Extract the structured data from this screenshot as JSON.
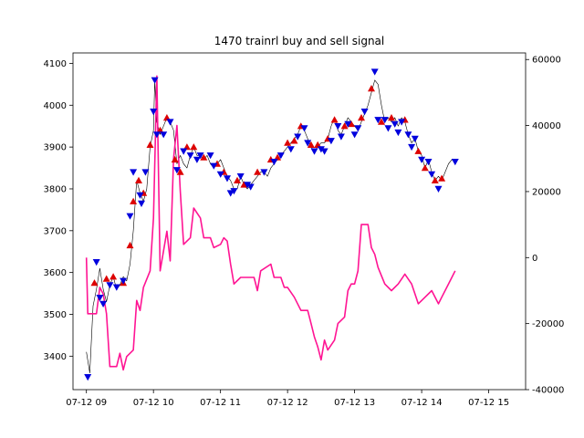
{
  "chart_data": {
    "type": "line",
    "title": "1470 trainrl buy and sell signal",
    "xlabel": "",
    "ylabel": "",
    "x_range": [
      8.8,
      15.55
    ],
    "x_ticks": [
      {
        "value": 9,
        "label": "07-12 09"
      },
      {
        "value": 10,
        "label": "07-12 10"
      },
      {
        "value": 11,
        "label": "07-12 11"
      },
      {
        "value": 12,
        "label": "07-12 12"
      },
      {
        "value": 13,
        "label": "07-12 13"
      },
      {
        "value": 14,
        "label": "07-12 14"
      },
      {
        "value": 15,
        "label": "07-12 15"
      }
    ],
    "left_axis": {
      "ylim": [
        3320,
        4125
      ],
      "ticks": [
        3400,
        3500,
        3600,
        3700,
        3800,
        3900,
        4000,
        4100
      ]
    },
    "right_axis": {
      "ylim": [
        -40000,
        62000
      ],
      "ticks": [
        -40000,
        -20000,
        0,
        20000,
        40000,
        60000
      ]
    },
    "series": [
      {
        "axis": "left",
        "color": "#000000",
        "values": [
          [
            9.0,
            3410
          ],
          [
            9.05,
            3360
          ],
          [
            9.1,
            3520
          ],
          [
            9.15,
            3560
          ],
          [
            9.2,
            3610
          ],
          [
            9.25,
            3560
          ],
          [
            9.3,
            3530
          ],
          [
            9.35,
            3570
          ],
          [
            9.4,
            3590
          ],
          [
            9.45,
            3560
          ],
          [
            9.5,
            3570
          ],
          [
            9.55,
            3590
          ],
          [
            9.6,
            3580
          ],
          [
            9.65,
            3620
          ],
          [
            9.7,
            3700
          ],
          [
            9.75,
            3820
          ],
          [
            9.8,
            3790
          ],
          [
            9.85,
            3770
          ],
          [
            9.9,
            3800
          ],
          [
            9.95,
            3900
          ],
          [
            10.0,
            3940
          ],
          [
            10.02,
            4060
          ],
          [
            10.05,
            3960
          ],
          [
            10.1,
            3930
          ],
          [
            10.15,
            3950
          ],
          [
            10.2,
            3970
          ],
          [
            10.25,
            3960
          ],
          [
            10.3,
            3940
          ],
          [
            10.35,
            3860
          ],
          [
            10.4,
            3880
          ],
          [
            10.45,
            3860
          ],
          [
            10.5,
            3850
          ],
          [
            10.55,
            3880
          ],
          [
            10.6,
            3900
          ],
          [
            10.65,
            3880
          ],
          [
            10.7,
            3880
          ],
          [
            10.75,
            3870
          ],
          [
            10.8,
            3880
          ],
          [
            10.85,
            3860
          ],
          [
            10.9,
            3850
          ],
          [
            10.95,
            3860
          ],
          [
            11.0,
            3870
          ],
          [
            11.05,
            3850
          ],
          [
            11.1,
            3830
          ],
          [
            11.15,
            3820
          ],
          [
            11.2,
            3800
          ],
          [
            11.25,
            3800
          ],
          [
            11.3,
            3830
          ],
          [
            11.35,
            3810
          ],
          [
            11.4,
            3800
          ],
          [
            11.45,
            3810
          ],
          [
            11.5,
            3820
          ],
          [
            11.55,
            3830
          ],
          [
            11.6,
            3840
          ],
          [
            11.65,
            3840
          ],
          [
            11.7,
            3830
          ],
          [
            11.75,
            3850
          ],
          [
            11.8,
            3860
          ],
          [
            11.85,
            3870
          ],
          [
            11.9,
            3880
          ],
          [
            11.95,
            3890
          ],
          [
            12.0,
            3900
          ],
          [
            12.05,
            3910
          ],
          [
            12.1,
            3920
          ],
          [
            12.15,
            3930
          ],
          [
            12.2,
            3950
          ],
          [
            12.25,
            3940
          ],
          [
            12.3,
            3920
          ],
          [
            12.35,
            3900
          ],
          [
            12.4,
            3890
          ],
          [
            12.45,
            3900
          ],
          [
            12.5,
            3910
          ],
          [
            12.55,
            3910
          ],
          [
            12.6,
            3920
          ],
          [
            12.65,
            3950
          ],
          [
            12.7,
            3970
          ],
          [
            12.75,
            3940
          ],
          [
            12.8,
            3930
          ],
          [
            12.85,
            3950
          ],
          [
            12.9,
            3970
          ],
          [
            12.95,
            3960
          ],
          [
            13.0,
            3950
          ],
          [
            13.05,
            3940
          ],
          [
            13.1,
            3960
          ],
          [
            13.15,
            3980
          ],
          [
            13.2,
            4000
          ],
          [
            13.25,
            4030
          ],
          [
            13.3,
            4060
          ],
          [
            13.35,
            4050
          ],
          [
            13.4,
            4000
          ],
          [
            13.45,
            3960
          ],
          [
            13.5,
            3970
          ],
          [
            13.55,
            3960
          ],
          [
            13.6,
            3970
          ],
          [
            13.65,
            3950
          ],
          [
            13.7,
            3970
          ],
          [
            13.75,
            3960
          ],
          [
            13.8,
            3930
          ],
          [
            13.85,
            3910
          ],
          [
            13.9,
            3920
          ],
          [
            13.95,
            3890
          ],
          [
            14.0,
            3880
          ],
          [
            14.05,
            3850
          ],
          [
            14.1,
            3870
          ],
          [
            14.15,
            3840
          ],
          [
            14.2,
            3820
          ],
          [
            14.25,
            3830
          ],
          [
            14.3,
            3820
          ],
          [
            14.35,
            3840
          ],
          [
            14.4,
            3860
          ],
          [
            14.45,
            3870
          ],
          [
            14.5,
            3865
          ]
        ]
      },
      {
        "axis": "right",
        "color": "#ff1493",
        "values": [
          [
            9.0,
            0
          ],
          [
            9.02,
            -17000
          ],
          [
            9.15,
            -17000
          ],
          [
            9.2,
            -9000
          ],
          [
            9.25,
            -11000
          ],
          [
            9.3,
            -17000
          ],
          [
            9.35,
            -33000
          ],
          [
            9.45,
            -33000
          ],
          [
            9.5,
            -29000
          ],
          [
            9.55,
            -34000
          ],
          [
            9.6,
            -30000
          ],
          [
            9.7,
            -28000
          ],
          [
            9.75,
            -13000
          ],
          [
            9.8,
            -16000
          ],
          [
            9.85,
            -9000
          ],
          [
            9.95,
            -4000
          ],
          [
            10.0,
            12000
          ],
          [
            10.05,
            55000
          ],
          [
            10.1,
            -4000
          ],
          [
            10.15,
            2000
          ],
          [
            10.2,
            8000
          ],
          [
            10.25,
            -1000
          ],
          [
            10.3,
            30000
          ],
          [
            10.35,
            40000
          ],
          [
            10.4,
            20000
          ],
          [
            10.45,
            4000
          ],
          [
            10.55,
            6000
          ],
          [
            10.6,
            15000
          ],
          [
            10.7,
            12000
          ],
          [
            10.75,
            6000
          ],
          [
            10.85,
            6000
          ],
          [
            10.9,
            3000
          ],
          [
            11.0,
            4000
          ],
          [
            11.05,
            6000
          ],
          [
            11.1,
            5000
          ],
          [
            11.15,
            -2000
          ],
          [
            11.2,
            -8000
          ],
          [
            11.3,
            -6000
          ],
          [
            11.5,
            -6000
          ],
          [
            11.55,
            -10000
          ],
          [
            11.6,
            -4000
          ],
          [
            11.75,
            -2000
          ],
          [
            11.8,
            -6000
          ],
          [
            11.9,
            -6000
          ],
          [
            11.95,
            -9000
          ],
          [
            12.0,
            -9000
          ],
          [
            12.1,
            -12000
          ],
          [
            12.2,
            -16000
          ],
          [
            12.3,
            -16000
          ],
          [
            12.35,
            -20000
          ],
          [
            12.4,
            -24000
          ],
          [
            12.45,
            -27000
          ],
          [
            12.5,
            -31000
          ],
          [
            12.55,
            -25000
          ],
          [
            12.6,
            -28000
          ],
          [
            12.7,
            -25000
          ],
          [
            12.75,
            -20000
          ],
          [
            12.85,
            -18000
          ],
          [
            12.9,
            -10000
          ],
          [
            12.95,
            -8000
          ],
          [
            13.0,
            -8000
          ],
          [
            13.05,
            -4000
          ],
          [
            13.1,
            10000
          ],
          [
            13.2,
            10000
          ],
          [
            13.25,
            3000
          ],
          [
            13.3,
            1000
          ],
          [
            13.35,
            -3000
          ],
          [
            13.45,
            -8000
          ],
          [
            13.55,
            -10000
          ],
          [
            13.65,
            -8000
          ],
          [
            13.75,
            -5000
          ],
          [
            13.85,
            -8000
          ],
          [
            13.95,
            -14000
          ],
          [
            14.05,
            -12000
          ],
          [
            14.15,
            -10000
          ],
          [
            14.25,
            -14000
          ],
          [
            14.3,
            -12000
          ],
          [
            14.4,
            -8000
          ],
          [
            14.5,
            -4000
          ]
        ]
      }
    ],
    "markers": {
      "buy": {
        "axis": "left",
        "color": "#dd0000",
        "shape": "triangle-up",
        "points": [
          [
            9.12,
            3575
          ],
          [
            9.3,
            3585
          ],
          [
            9.4,
            3590
          ],
          [
            9.55,
            3575
          ],
          [
            9.65,
            3665
          ],
          [
            9.7,
            3770
          ],
          [
            9.78,
            3820
          ],
          [
            9.85,
            3790
          ],
          [
            9.95,
            3905
          ],
          [
            10.1,
            3940
          ],
          [
            10.2,
            3970
          ],
          [
            10.32,
            3870
          ],
          [
            10.4,
            3840
          ],
          [
            10.5,
            3900
          ],
          [
            10.6,
            3900
          ],
          [
            10.75,
            3875
          ],
          [
            10.95,
            3860
          ],
          [
            11.05,
            3840
          ],
          [
            11.25,
            3820
          ],
          [
            11.35,
            3810
          ],
          [
            11.55,
            3840
          ],
          [
            11.75,
            3870
          ],
          [
            11.85,
            3875
          ],
          [
            12.0,
            3910
          ],
          [
            12.1,
            3915
          ],
          [
            12.2,
            3950
          ],
          [
            12.35,
            3905
          ],
          [
            12.45,
            3905
          ],
          [
            12.6,
            3920
          ],
          [
            12.7,
            3965
          ],
          [
            12.85,
            3950
          ],
          [
            12.95,
            3955
          ],
          [
            13.1,
            3970
          ],
          [
            13.25,
            4040
          ],
          [
            13.4,
            3960
          ],
          [
            13.55,
            3970
          ],
          [
            13.75,
            3965
          ],
          [
            13.95,
            3890
          ],
          [
            14.05,
            3850
          ],
          [
            14.2,
            3820
          ],
          [
            14.3,
            3825
          ]
        ]
      },
      "sell": {
        "axis": "left",
        "color": "#0000dd",
        "shape": "triangle-down",
        "points": [
          [
            9.02,
            3350
          ],
          [
            9.15,
            3625
          ],
          [
            9.2,
            3540
          ],
          [
            9.25,
            3525
          ],
          [
            9.35,
            3570
          ],
          [
            9.45,
            3565
          ],
          [
            9.55,
            3580
          ],
          [
            9.65,
            3735
          ],
          [
            9.7,
            3840
          ],
          [
            9.8,
            3785
          ],
          [
            9.82,
            3765
          ],
          [
            9.88,
            3840
          ],
          [
            10.0,
            3985
          ],
          [
            10.02,
            4060
          ],
          [
            10.05,
            3930
          ],
          [
            10.15,
            3930
          ],
          [
            10.25,
            3960
          ],
          [
            10.35,
            3845
          ],
          [
            10.45,
            3890
          ],
          [
            10.55,
            3880
          ],
          [
            10.65,
            3870
          ],
          [
            10.7,
            3880
          ],
          [
            10.85,
            3880
          ],
          [
            10.9,
            3855
          ],
          [
            11.0,
            3835
          ],
          [
            11.1,
            3825
          ],
          [
            11.15,
            3790
          ],
          [
            11.2,
            3795
          ],
          [
            11.3,
            3830
          ],
          [
            11.4,
            3810
          ],
          [
            11.45,
            3805
          ],
          [
            11.65,
            3840
          ],
          [
            11.8,
            3865
          ],
          [
            11.9,
            3880
          ],
          [
            12.05,
            3895
          ],
          [
            12.15,
            3925
          ],
          [
            12.25,
            3945
          ],
          [
            12.3,
            3910
          ],
          [
            12.4,
            3890
          ],
          [
            12.5,
            3895
          ],
          [
            12.55,
            3890
          ],
          [
            12.65,
            3915
          ],
          [
            12.75,
            3950
          ],
          [
            12.8,
            3925
          ],
          [
            12.9,
            3955
          ],
          [
            13.0,
            3930
          ],
          [
            13.05,
            3945
          ],
          [
            13.15,
            3985
          ],
          [
            13.3,
            4080
          ],
          [
            13.35,
            3965
          ],
          [
            13.45,
            3965
          ],
          [
            13.5,
            3945
          ],
          [
            13.6,
            3955
          ],
          [
            13.65,
            3935
          ],
          [
            13.7,
            3960
          ],
          [
            13.8,
            3930
          ],
          [
            13.85,
            3900
          ],
          [
            13.9,
            3920
          ],
          [
            14.0,
            3870
          ],
          [
            14.1,
            3865
          ],
          [
            14.15,
            3835
          ],
          [
            14.25,
            3800
          ],
          [
            14.5,
            3865
          ]
        ]
      }
    }
  }
}
